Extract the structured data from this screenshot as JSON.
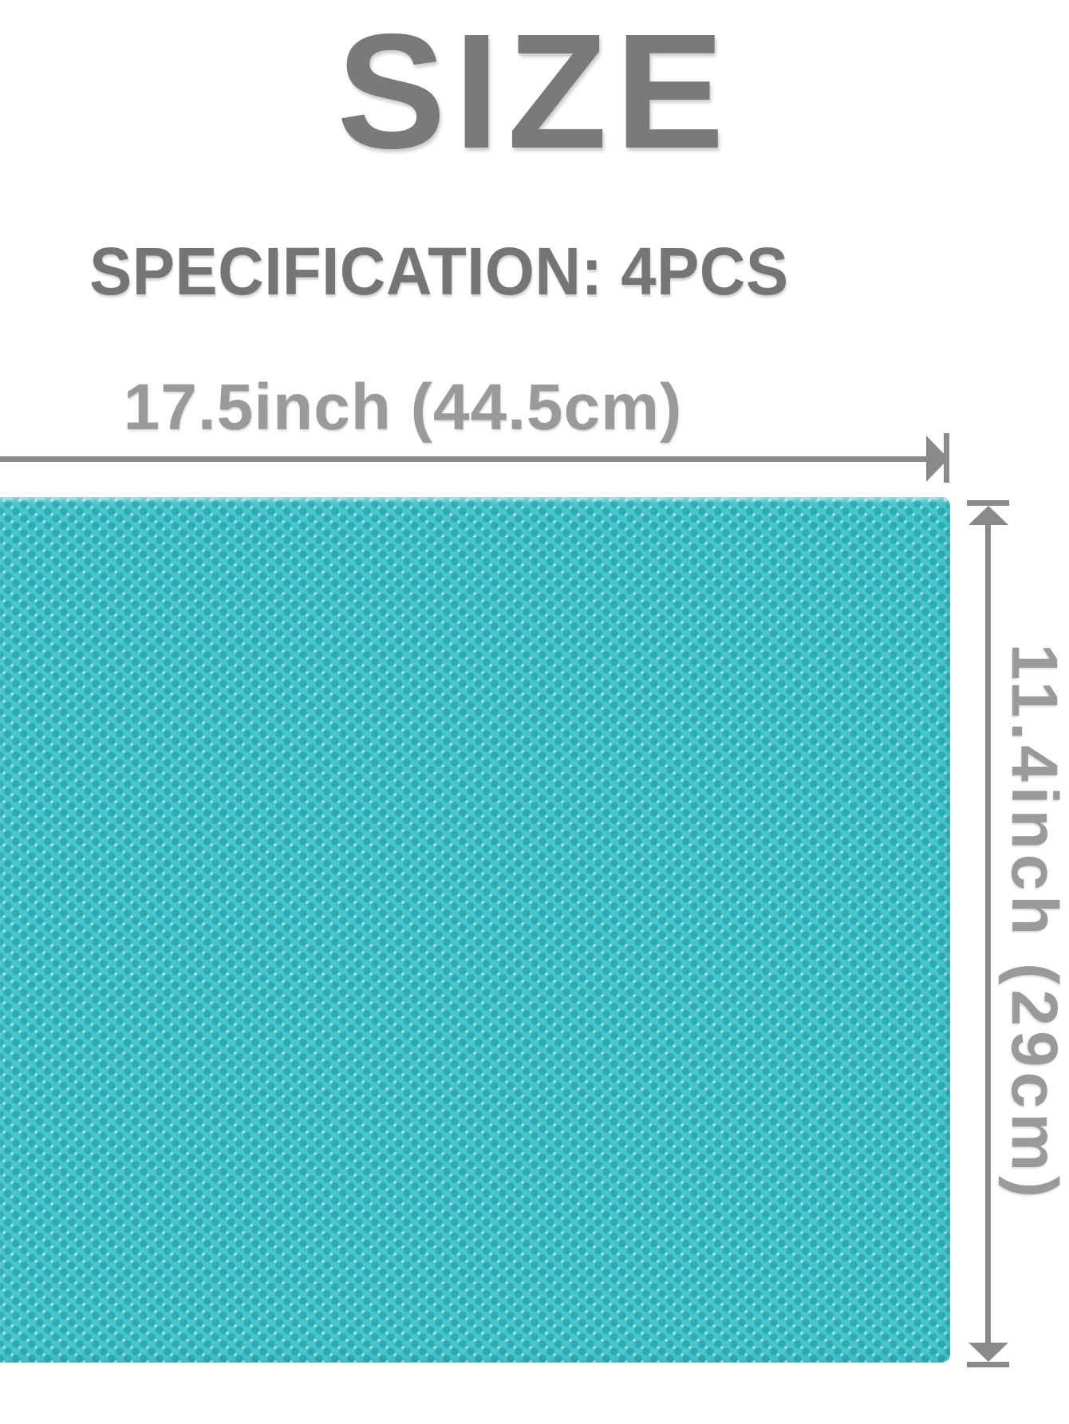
{
  "header": {
    "title": "SIZE",
    "specification": "SPECIFICATION: 4PCS"
  },
  "dimensions": {
    "width": {
      "label": "17.5inch (44.5cm)",
      "inches": "17.5",
      "centimeters": "44.5"
    },
    "height": {
      "label": "11.4inch (29cm)",
      "inches": "11.4",
      "centimeters": "29"
    }
  },
  "product": {
    "quantity": "4PCS",
    "surface": "honeycomb-dot-texture"
  },
  "colors": {
    "title_text": "#7a7a7a",
    "specification_text": "#757575",
    "dimension_text": "#9a9a9a",
    "dimension_lines": "#8a8a8a",
    "mat_teal": "#49c6cc",
    "mat_dot_teal": "#0e929e",
    "background": "#ffffff"
  }
}
